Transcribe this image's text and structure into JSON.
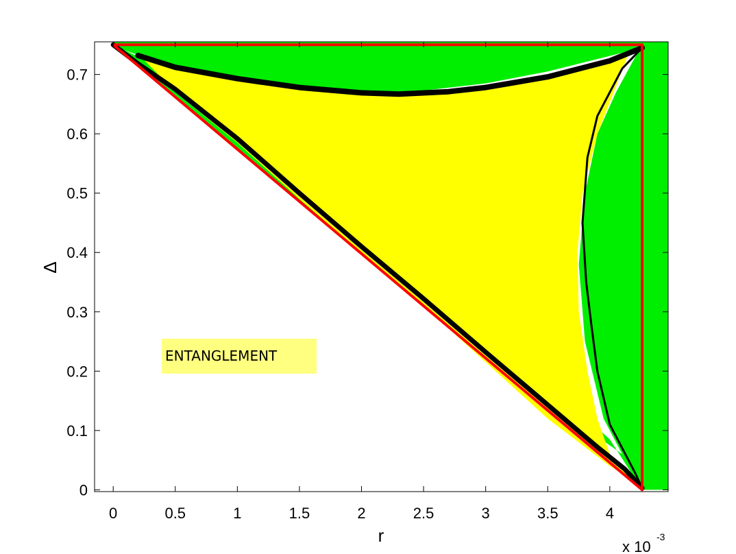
{
  "chart_data": {
    "type": "scatter",
    "xlabel": "r",
    "ylabel": "Δ",
    "x_multiplier_label": "x 10",
    "x_multiplier_exp": "-3",
    "xlim": [
      -0.00015,
      0.00447
    ],
    "ylim": [
      -0.003,
      0.755
    ],
    "xticks": [
      0,
      0.0005,
      0.001,
      0.0015,
      0.002,
      0.0025,
      0.003,
      0.0035,
      0.004
    ],
    "xtick_labels": [
      "0",
      "0.5",
      "1",
      "1.5",
      "2",
      "2.5",
      "3",
      "3.5",
      "4"
    ],
    "yticks": [
      0,
      0.1,
      0.2,
      0.3,
      0.4,
      0.5,
      0.6,
      0.7
    ],
    "ytick_labels": [
      "0",
      "0.1",
      "0.2",
      "0.3",
      "0.4",
      "0.5",
      "0.6",
      "0.7"
    ],
    "grid": false,
    "annotation": {
      "text": "ENTANGLEMENT",
      "x": 0.0004,
      "y": 0.22,
      "background": "#ffff80"
    },
    "colors": {
      "green_region": "#00ee00",
      "yellow_region": "#ffff00",
      "boundary_red": "#ff0000",
      "curve_black": "#000000",
      "axes": "#000000"
    },
    "r_max": 0.00426,
    "delta_max": 0.75,
    "series": [
      {
        "kind": "outer-triangle-boundary",
        "color": "#ff0000",
        "points": [
          [
            0,
            0.75
          ],
          [
            0.00426,
            0.75
          ],
          [
            0.00426,
            0
          ],
          [
            0,
            0.75
          ]
        ]
      },
      {
        "kind": "green-region-upper-band",
        "color": "#00ee00",
        "points": [
          [
            0,
            0.755
          ],
          [
            0.00447,
            0.755
          ],
          [
            0.00447,
            0.71
          ],
          [
            0.00426,
            0.745
          ],
          [
            0.0035,
            0.705
          ],
          [
            0.003,
            0.685
          ],
          [
            0.0023,
            0.668
          ],
          [
            0.0015,
            0.675
          ],
          [
            0.0005,
            0.71
          ],
          [
            0,
            0.748
          ]
        ]
      },
      {
        "kind": "green-region-diagonal-band",
        "color": "#00ee00",
        "points": [
          [
            0,
            0.75
          ],
          [
            0.0005,
            0.7
          ],
          [
            0.001,
            0.615
          ],
          [
            0.0015,
            0.53
          ],
          [
            0.002,
            0.445
          ],
          [
            0.0025,
            0.36
          ],
          [
            0.003,
            0.27
          ],
          [
            0.0035,
            0.18
          ],
          [
            0.004,
            0.085
          ],
          [
            0.00426,
            0.0
          ],
          [
            0.0041,
            0.06
          ],
          [
            0.0035,
            0.15
          ],
          [
            0.003,
            0.235
          ],
          [
            0.0025,
            0.32
          ],
          [
            0.002,
            0.4
          ],
          [
            0.0015,
            0.485
          ],
          [
            0.001,
            0.575
          ],
          [
            0.0005,
            0.665
          ],
          [
            0.0002,
            0.715
          ]
        ]
      },
      {
        "kind": "green-region-right-band",
        "color": "#00ee00",
        "points": [
          [
            0.00426,
            0.75
          ],
          [
            0.00447,
            0.755
          ],
          [
            0.00447,
            0.0
          ],
          [
            0.00426,
            0.0
          ],
          [
            0.00415,
            0.04
          ],
          [
            0.00395,
            0.12
          ],
          [
            0.0038,
            0.25
          ],
          [
            0.00375,
            0.38
          ],
          [
            0.0038,
            0.5
          ],
          [
            0.0039,
            0.6
          ],
          [
            0.00405,
            0.67
          ],
          [
            0.00418,
            0.72
          ]
        ]
      },
      {
        "kind": "yellow-region",
        "color": "#ffff00",
        "points": [
          [
            0.0002,
            0.735
          ],
          [
            0.0005,
            0.71
          ],
          [
            0.001,
            0.692
          ],
          [
            0.0015,
            0.678
          ],
          [
            0.002,
            0.67
          ],
          [
            0.0023,
            0.668
          ],
          [
            0.003,
            0.678
          ],
          [
            0.0035,
            0.695
          ],
          [
            0.004,
            0.725
          ],
          [
            0.00415,
            0.735
          ],
          [
            0.00405,
            0.68
          ],
          [
            0.0039,
            0.6
          ],
          [
            0.00378,
            0.5
          ],
          [
            0.00374,
            0.4
          ],
          [
            0.00375,
            0.3
          ],
          [
            0.00382,
            0.2
          ],
          [
            0.0039,
            0.12
          ],
          [
            0.004,
            0.06
          ],
          [
            0.0042,
            0.015
          ],
          [
            0.004,
            0.04
          ],
          [
            0.0035,
            0.12
          ],
          [
            0.003,
            0.215
          ],
          [
            0.0025,
            0.31
          ],
          [
            0.002,
            0.4
          ],
          [
            0.0015,
            0.49
          ],
          [
            0.001,
            0.585
          ],
          [
            0.0005,
            0.67
          ]
        ]
      },
      {
        "kind": "black-upper-arc",
        "color": "#000000",
        "points": [
          [
            0.0002,
            0.732
          ],
          [
            0.0005,
            0.712
          ],
          [
            0.001,
            0.693
          ],
          [
            0.0015,
            0.678
          ],
          [
            0.002,
            0.669
          ],
          [
            0.0023,
            0.667
          ],
          [
            0.0027,
            0.671
          ],
          [
            0.003,
            0.678
          ],
          [
            0.0035,
            0.696
          ],
          [
            0.004,
            0.723
          ],
          [
            0.00426,
            0.745
          ]
        ]
      },
      {
        "kind": "black-lower-diagonal",
        "color": "#000000",
        "points": [
          [
            0,
            0.75
          ],
          [
            0.0002,
            0.718
          ],
          [
            0.0005,
            0.675
          ],
          [
            0.001,
            0.592
          ],
          [
            0.0015,
            0.5
          ],
          [
            0.002,
            0.41
          ],
          [
            0.0025,
            0.322
          ],
          [
            0.003,
            0.232
          ],
          [
            0.0035,
            0.143
          ],
          [
            0.0039,
            0.072
          ],
          [
            0.00412,
            0.035
          ],
          [
            0.00426,
            0.003
          ]
        ]
      },
      {
        "kind": "black-right-edge",
        "color": "#000000",
        "points": [
          [
            0.00426,
            0.745
          ],
          [
            0.0041,
            0.71
          ],
          [
            0.0039,
            0.63
          ],
          [
            0.00382,
            0.56
          ],
          [
            0.00378,
            0.45
          ],
          [
            0.00381,
            0.35
          ],
          [
            0.00385,
            0.28
          ],
          [
            0.0039,
            0.2
          ],
          [
            0.004,
            0.11
          ],
          [
            0.0042,
            0.03
          ],
          [
            0.00426,
            0.003
          ]
        ]
      }
    ]
  }
}
